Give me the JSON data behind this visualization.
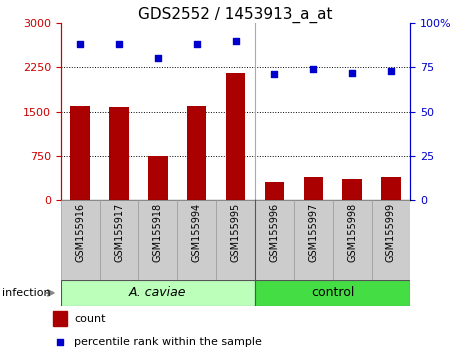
{
  "title": "GDS2552 / 1453913_a_at",
  "samples": [
    "GSM155916",
    "GSM155917",
    "GSM155918",
    "GSM155994",
    "GSM155995",
    "GSM155996",
    "GSM155997",
    "GSM155998",
    "GSM155999"
  ],
  "count_values": [
    1600,
    1570,
    750,
    1590,
    2150,
    310,
    390,
    360,
    390
  ],
  "percentile_values": [
    88,
    88,
    80,
    88,
    90,
    71,
    74,
    72,
    73
  ],
  "ylim_left": [
    0,
    3000
  ],
  "ylim_right": [
    0,
    100
  ],
  "yticks_left": [
    0,
    750,
    1500,
    2250,
    3000
  ],
  "ytick_labels_left": [
    "0",
    "750",
    "1500",
    "2250",
    "3000"
  ],
  "yticks_right": [
    0,
    25,
    50,
    75,
    100
  ],
  "ytick_labels_right": [
    "0",
    "25",
    "50",
    "75",
    "100%"
  ],
  "left_axis_color": "#cc0000",
  "right_axis_color": "#0000cc",
  "bar_color": "#aa0000",
  "dot_color": "#0000cc",
  "grid_color": "#000000",
  "bg_plot": "#ffffff",
  "bg_xtick": "#cccccc",
  "group1_label": "A. caviae",
  "group2_label": "control",
  "group1_indices": [
    0,
    1,
    2,
    3,
    4
  ],
  "group2_indices": [
    5,
    6,
    7,
    8
  ],
  "group1_bg": "#bbffbb",
  "group2_bg": "#44dd44",
  "infection_label": "infection",
  "legend_count": "count",
  "legend_percentile": "percentile rank within the sample",
  "title_fontsize": 11,
  "tick_fontsize": 8,
  "legend_fontsize": 8,
  "sample_fontsize": 7,
  "group_fontsize": 9
}
